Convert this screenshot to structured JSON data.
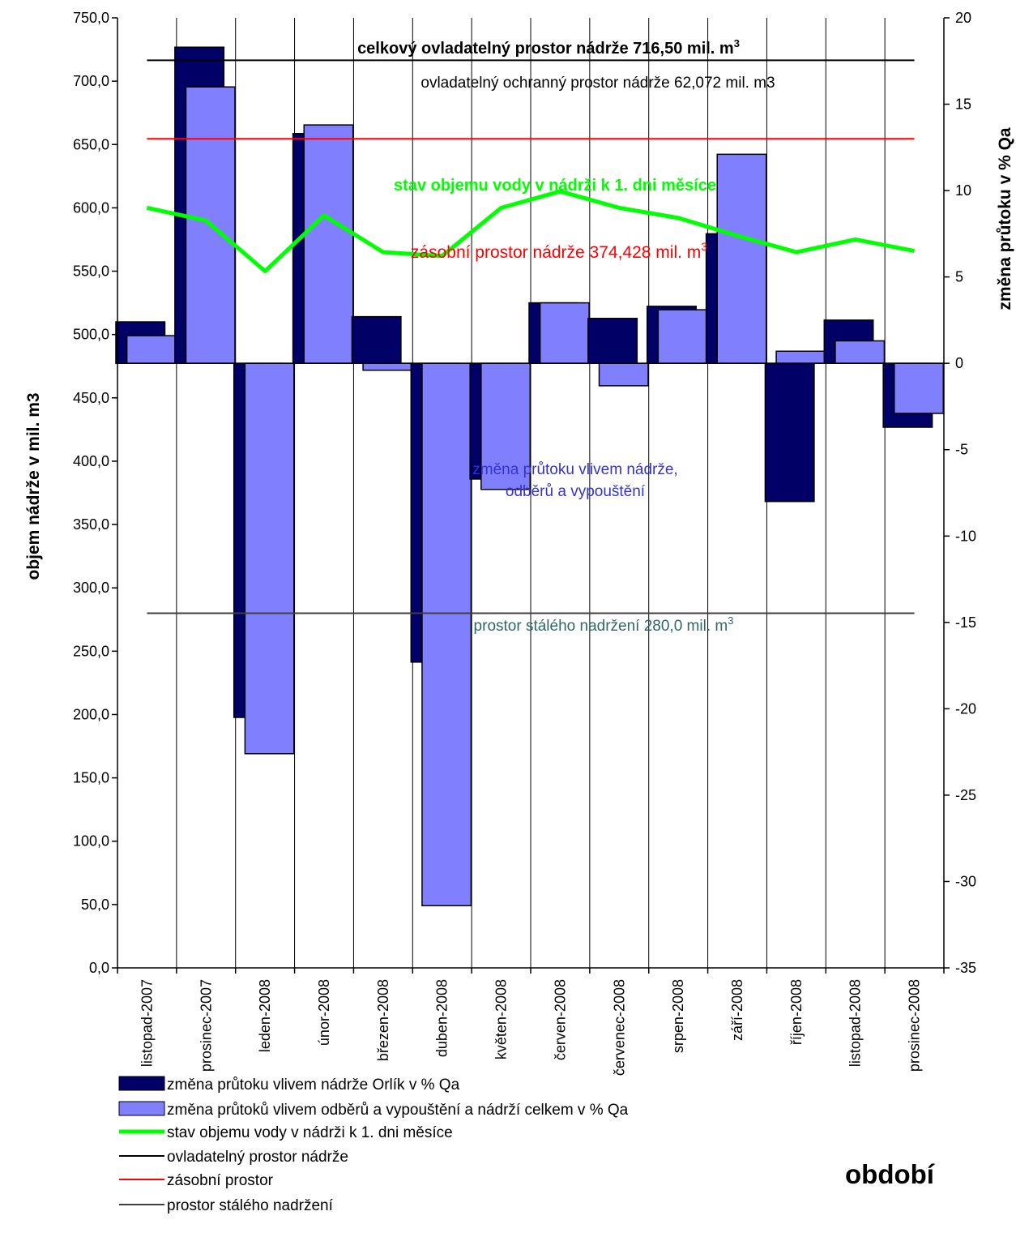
{
  "chart_data": {
    "type": "bar",
    "categories": [
      "listopad-2007",
      "prosinec-2007",
      "leden-2008",
      "únor-2008",
      "březen-2008",
      "duben-2008",
      "květen-2008",
      "červen-2008",
      "červenec-2008",
      "srpen-2008",
      "září-2008",
      "říjen-2008",
      "listopad-2008",
      "prosinec-2008"
    ],
    "xlabel": "období",
    "ylabel_left": "objem nádrže v mil. m3",
    "ylabel_right": "změna průtoku v % Qa",
    "ylim_left": [
      0,
      750
    ],
    "ylim_right": [
      -35,
      20
    ],
    "yticks_left": [
      "0,0",
      "50,0",
      "100,0",
      "150,0",
      "200,0",
      "250,0",
      "300,0",
      "350,0",
      "400,0",
      "450,0",
      "500,0",
      "550,0",
      "600,0",
      "650,0",
      "700,0",
      "750,0"
    ],
    "yticks_right": [
      "-35",
      "-30",
      "-25",
      "-20",
      "-15",
      "-10",
      "-5",
      "0",
      "5",
      "10",
      "15",
      "20"
    ],
    "series": [
      {
        "name": "změna průtoku vlivem nádrže Orlík v % Qa",
        "axis": "right",
        "color": "#000066",
        "values": [
          2.4,
          18.3,
          -20.5,
          13.3,
          2.7,
          -17.3,
          -6.7,
          3.5,
          2.6,
          3.3,
          7.5,
          -8.0,
          2.5,
          -3.7
        ]
      },
      {
        "name": "změna průtoků vlivem odběrů a vypouštění a nádrží celkem v % Qa",
        "axis": "right",
        "color": "#8080FF",
        "values": [
          1.6,
          16.0,
          -22.6,
          13.8,
          -0.4,
          -31.4,
          -7.3,
          3.5,
          -1.3,
          3.1,
          12.1,
          0.7,
          1.3,
          -2.9
        ]
      },
      {
        "name": "stav objemu vody v nádrži k 1. dni měsíce",
        "axis": "left",
        "color": "#00FF00",
        "type": "line",
        "values": [
          600,
          590,
          550,
          594,
          565,
          562,
          600,
          613,
          600,
          592,
          578,
          565,
          575,
          566
        ]
      },
      {
        "name": "ovladatelný prostor nádrže",
        "axis": "left",
        "color": "#000000",
        "type": "hline",
        "value": 716.5
      },
      {
        "name": "zásobní prostor",
        "axis": "left",
        "color": "#FF0000",
        "type": "hline",
        "value": 654.5
      },
      {
        "name": "prostor stálého nadržení",
        "axis": "left",
        "color": "#404040",
        "type": "hline",
        "value": 280
      }
    ],
    "annotations": {
      "total_space_main": "celkový ovladatelný prostor nádrže 716,50  mil. m",
      "total_space_sup": "3",
      "flood_space": "ovladatelný ochranný prostor nádrže 62,072 mil. m3",
      "water_volume": "stav objemu vody v  nádrži k 1. dni měsíce",
      "storage_main": "zásobní prostor nádrže 374,428 mil. m",
      "storage_sup": "3",
      "flow_change_line1": "změna průtoku vlivem nádrže,",
      "flow_change_line2": "odběrů a vypouštění",
      "permanent_main": "prostor stálého nadržení 280,0 mil. m",
      "permanent_sup": "3"
    }
  },
  "colors": {
    "dark_bar": "#000066",
    "light_bar": "#8080FF",
    "volume_line": "#00FF00",
    "storage_line": "#FF0000",
    "permanent_line": "#404040",
    "flow_text": "#3333CC",
    "permanent_text": "#336666"
  }
}
